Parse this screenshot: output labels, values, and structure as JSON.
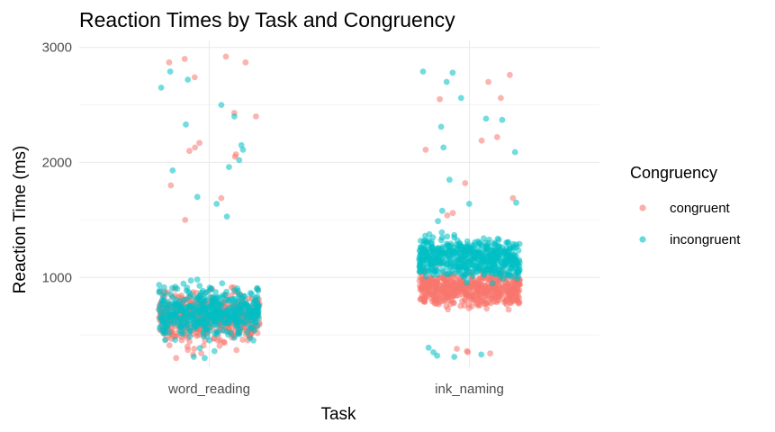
{
  "chart_data": {
    "type": "scatter",
    "title": "Reaction Times by Task and Congruency",
    "xlabel": "Task",
    "ylabel": "Reaction Time (ms)",
    "categories": [
      "word_reading",
      "ink_naming"
    ],
    "y_ticks": [
      1000,
      2000,
      3000
    ],
    "ylim": [
      220,
      3060
    ],
    "grid": true,
    "jitter": true,
    "legend": {
      "title": "Congruency",
      "position": "right",
      "entries": [
        "congruent",
        "incongruent"
      ]
    },
    "colors": {
      "congruent": "#F8766D",
      "incongruent": "#00BFC4"
    },
    "series": [
      {
        "name": "congruent",
        "color": "#F8766D",
        "points": [
          {
            "task": "word_reading",
            "rt": 2870
          },
          {
            "task": "word_reading",
            "rt": 2900
          },
          {
            "task": "word_reading",
            "rt": 2920
          },
          {
            "task": "word_reading",
            "rt": 2870
          },
          {
            "task": "word_reading",
            "rt": 2740
          },
          {
            "task": "word_reading",
            "rt": 2430
          },
          {
            "task": "word_reading",
            "rt": 2400
          },
          {
            "task": "word_reading",
            "rt": 2100
          },
          {
            "task": "word_reading",
            "rt": 2070
          },
          {
            "task": "word_reading",
            "rt": 2050
          },
          {
            "task": "word_reading",
            "rt": 2130
          },
          {
            "task": "word_reading",
            "rt": 2170
          },
          {
            "task": "word_reading",
            "rt": 1800
          },
          {
            "task": "word_reading",
            "rt": 1690
          },
          {
            "task": "word_reading",
            "rt": 1500
          },
          {
            "task": "word_reading",
            "rt": 330
          },
          {
            "task": "word_reading",
            "rt": 300
          },
          {
            "task": "word_reading",
            "rt": 380
          },
          {
            "task": "ink_naming",
            "rt": 2700
          },
          {
            "task": "ink_naming",
            "rt": 2760
          },
          {
            "task": "ink_naming",
            "rt": 2560
          },
          {
            "task": "ink_naming",
            "rt": 2550
          },
          {
            "task": "ink_naming",
            "rt": 2220
          },
          {
            "task": "ink_naming",
            "rt": 2190
          },
          {
            "task": "ink_naming",
            "rt": 2110
          },
          {
            "task": "ink_naming",
            "rt": 1820
          },
          {
            "task": "ink_naming",
            "rt": 1690
          },
          {
            "task": "ink_naming",
            "rt": 1560
          },
          {
            "task": "ink_naming",
            "rt": 1540
          },
          {
            "task": "ink_naming",
            "rt": 340
          },
          {
            "task": "ink_naming",
            "rt": 380
          },
          {
            "task": "ink_naming",
            "rt": 350
          },
          {
            "task": "ink_naming",
            "rt": 360
          }
        ],
        "bulk": [
          {
            "task": "word_reading",
            "min": 330,
            "max": 1000,
            "center": 650,
            "n": 520
          },
          {
            "task": "ink_naming",
            "min": 680,
            "max": 1130,
            "center": 900,
            "n": 560
          }
        ]
      },
      {
        "name": "incongruent",
        "color": "#00BFC4",
        "points": [
          {
            "task": "word_reading",
            "rt": 2720
          },
          {
            "task": "word_reading",
            "rt": 2790
          },
          {
            "task": "word_reading",
            "rt": 2650
          },
          {
            "task": "word_reading",
            "rt": 2500
          },
          {
            "task": "word_reading",
            "rt": 2400
          },
          {
            "task": "word_reading",
            "rt": 2330
          },
          {
            "task": "word_reading",
            "rt": 2150
          },
          {
            "task": "word_reading",
            "rt": 2110
          },
          {
            "task": "word_reading",
            "rt": 2020
          },
          {
            "task": "word_reading",
            "rt": 1960
          },
          {
            "task": "word_reading",
            "rt": 1930
          },
          {
            "task": "word_reading",
            "rt": 1700
          },
          {
            "task": "word_reading",
            "rt": 1640
          },
          {
            "task": "word_reading",
            "rt": 1530
          },
          {
            "task": "word_reading",
            "rt": 300
          },
          {
            "task": "word_reading",
            "rt": 310
          },
          {
            "task": "word_reading",
            "rt": 360
          },
          {
            "task": "ink_naming",
            "rt": 2790
          },
          {
            "task": "ink_naming",
            "rt": 2780
          },
          {
            "task": "ink_naming",
            "rt": 2700
          },
          {
            "task": "ink_naming",
            "rt": 2560
          },
          {
            "task": "ink_naming",
            "rt": 2380
          },
          {
            "task": "ink_naming",
            "rt": 2370
          },
          {
            "task": "ink_naming",
            "rt": 2310
          },
          {
            "task": "ink_naming",
            "rt": 2130
          },
          {
            "task": "ink_naming",
            "rt": 2090
          },
          {
            "task": "ink_naming",
            "rt": 1850
          },
          {
            "task": "ink_naming",
            "rt": 1650
          },
          {
            "task": "ink_naming",
            "rt": 1640
          },
          {
            "task": "ink_naming",
            "rt": 1580
          },
          {
            "task": "ink_naming",
            "rt": 1490
          },
          {
            "task": "ink_naming",
            "rt": 390
          },
          {
            "task": "ink_naming",
            "rt": 350
          },
          {
            "task": "ink_naming",
            "rt": 330
          },
          {
            "task": "ink_naming",
            "rt": 310
          },
          {
            "task": "ink_naming",
            "rt": 320
          }
        ],
        "bulk": [
          {
            "task": "word_reading",
            "min": 380,
            "max": 1030,
            "center": 700,
            "n": 480
          },
          {
            "task": "ink_naming",
            "min": 930,
            "max": 1440,
            "center": 1170,
            "n": 560
          }
        ]
      }
    ]
  }
}
